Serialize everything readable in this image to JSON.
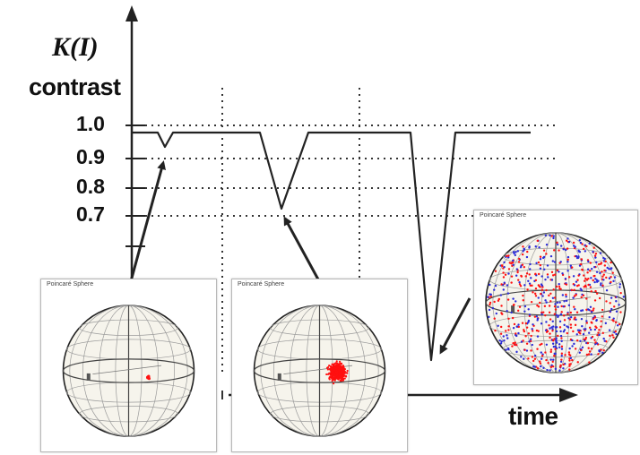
{
  "axes": {
    "y_label_math": "K(I)",
    "y_label_text": "contrast",
    "x_label": "time",
    "y_ticks": [
      "1.0",
      "0.9",
      "0.8",
      "0.7"
    ]
  },
  "panels": [
    {
      "title": "Poincaré Sphere",
      "state": "small cluster"
    },
    {
      "title": "Poincaré Sphere",
      "state": "spread cluster"
    },
    {
      "title": "Poincaré Sphere",
      "state": "fully scattered"
    }
  ],
  "colors": {
    "line": "#222222",
    "grid": "#333333",
    "point_red": "#ff1010",
    "point_blue": "#2a2ad8",
    "sphere_fill": "#f6f4ec"
  }
}
